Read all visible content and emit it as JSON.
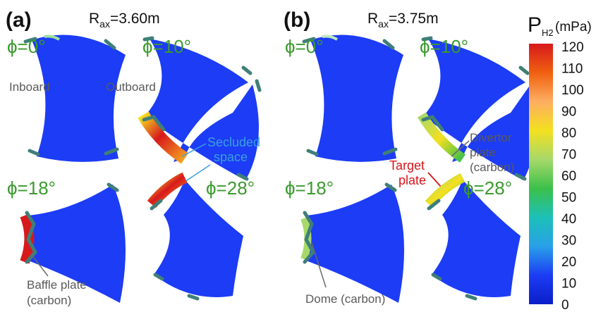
{
  "panels": [
    {
      "label": "(a)",
      "rax_prefix": "R",
      "rax_sub": "ax",
      "rax_value": "=3.60m"
    },
    {
      "label": "(b)",
      "rax_prefix": "R",
      "rax_sub": "ax",
      "rax_value": "=3.75m"
    }
  ],
  "angles": {
    "phi0": "ϕ=0°",
    "phi10": "ϕ=10°",
    "phi18": "ϕ=18°",
    "phi28": "ϕ=28°"
  },
  "annotations": {
    "inboard": "Inboard",
    "outboard": "Outboard",
    "secluded_1": "Secluded",
    "secluded_2": "space",
    "divertor_1": "Divertor",
    "divertor_2": "plate",
    "divertor_3": "(carbon)",
    "target_1": "Target",
    "target_2": "plate",
    "baffle_1": "Baffle plate",
    "baffle_2": "(carbon)",
    "dome": "Dome (carbon)"
  },
  "colorbar": {
    "title_main": "P",
    "title_sub": "H2",
    "unit": " (mPa)",
    "ticks": [
      "120",
      "110",
      "100",
      "90",
      "80",
      "70",
      "60",
      "50",
      "40",
      "30",
      "20",
      "10",
      "0"
    ],
    "colors": [
      "#d7191c",
      "#f06010",
      "#fdae61",
      "#f4e020",
      "#a6d96a",
      "#3cc04a",
      "#1cc0b8",
      "#29a0e8",
      "#1c3cf5",
      "#0a1ec8"
    ]
  },
  "colors": {
    "region": "#1c3cf5",
    "plate": "#3f7f78",
    "angle_text": "#3a9a2e",
    "secluded_text": "#3aa0df",
    "target_text": "#d8141b"
  }
}
